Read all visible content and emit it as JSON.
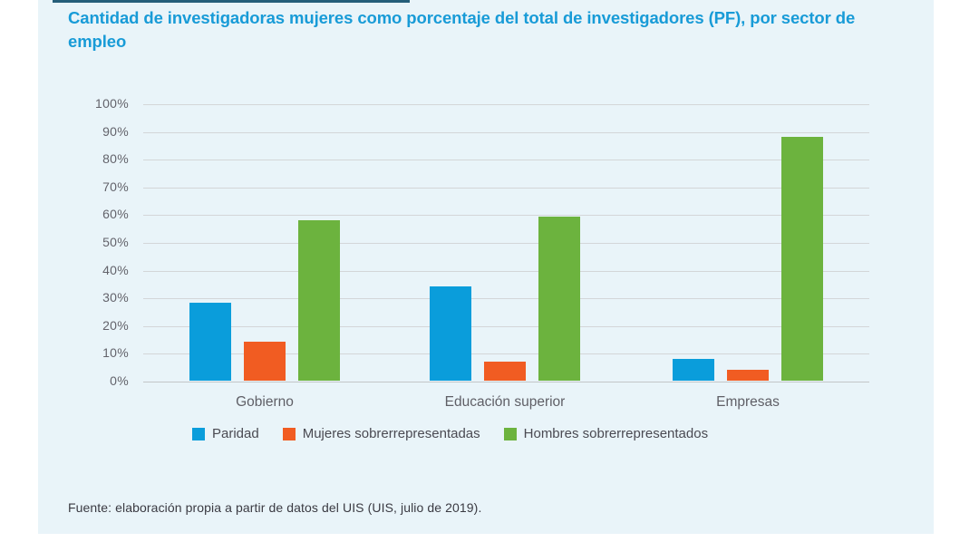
{
  "chart": {
    "title": "Cantidad de investigadoras mujeres como porcentaje del total de investigadores (PF), por sector de empleo",
    "source": "Fuente: elaboración propia a partir de datos del UIS (UIS, julio de 2019).",
    "title_color": "#189bd7",
    "panel_bg": "#e9f4f9"
  },
  "chart_data": {
    "type": "bar",
    "title": "Cantidad de investigadoras mujeres como porcentaje del total de investigadores (PF), por sector de empleo",
    "categories": [
      "Gobierno",
      "Educación superior",
      "Empresas"
    ],
    "series": [
      {
        "name": "Paridad",
        "color": "#0a9ddb",
        "values": [
          28,
          34,
          8
        ]
      },
      {
        "name": "Mujeres sobrerrepresentadas",
        "color": "#f15c22",
        "values": [
          14,
          7,
          4
        ]
      },
      {
        "name": "Hombres sobrerrepresentados",
        "color": "#6cb33e",
        "values": [
          58,
          59,
          88
        ]
      }
    ],
    "xlabel": "",
    "ylabel": "",
    "ylim": [
      0,
      100
    ],
    "ytick_step": 10,
    "ytick_suffix": "%",
    "grid": true,
    "legend_position": "bottom",
    "source_note": "Fuente: elaboración propia a partir de datos del UIS (UIS, julio de 2019)."
  }
}
